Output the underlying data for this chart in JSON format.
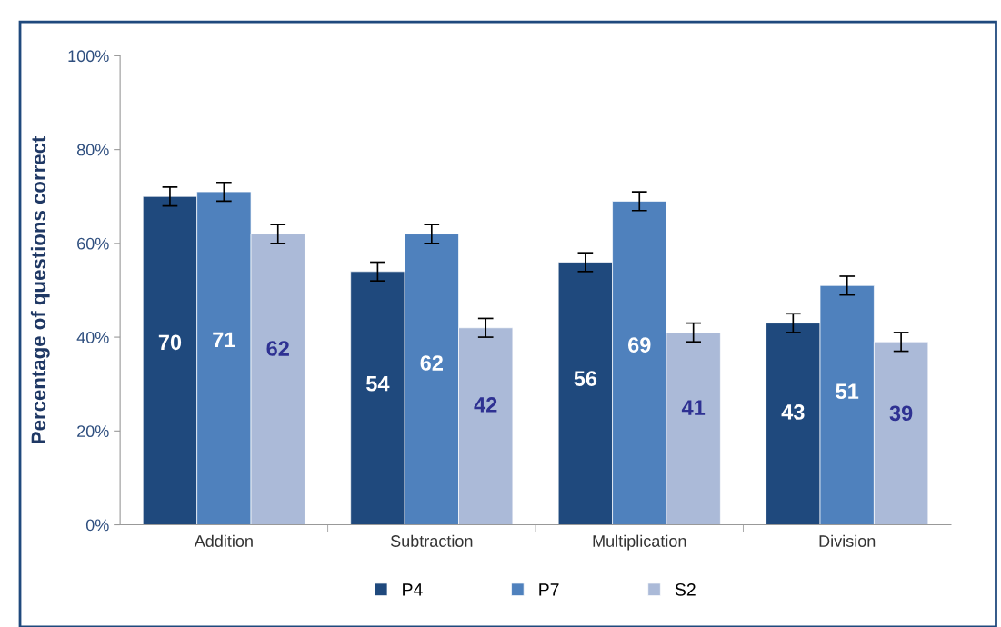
{
  "chart_data": {
    "type": "bar",
    "ylabel": "Percentage of questions correct",
    "categories": [
      "Addition",
      "Subtraction",
      "Multiplication",
      "Division"
    ],
    "series": [
      {
        "name": "P4",
        "color": "#1f497d",
        "values": [
          70,
          54,
          56,
          43
        ],
        "errors": [
          2,
          2,
          2,
          2
        ]
      },
      {
        "name": "P7",
        "color": "#4f81bd",
        "values": [
          71,
          62,
          69,
          51
        ],
        "errors": [
          2,
          2,
          2,
          2
        ]
      },
      {
        "name": "S2",
        "color": "#abbad8",
        "values": [
          62,
          42,
          41,
          39
        ],
        "errors": [
          2,
          2,
          2,
          2
        ]
      }
    ],
    "ylim": [
      0,
      100
    ],
    "yticks": [
      {
        "value": 0,
        "label": "0%"
      },
      {
        "value": 20,
        "label": "20%"
      },
      {
        "value": 40,
        "label": "40%"
      },
      {
        "value": 60,
        "label": "60%"
      },
      {
        "value": 80,
        "label": "80%"
      },
      {
        "value": 100,
        "label": "100%"
      }
    ],
    "data_labels": true,
    "grid": false,
    "legend": "bottom"
  }
}
